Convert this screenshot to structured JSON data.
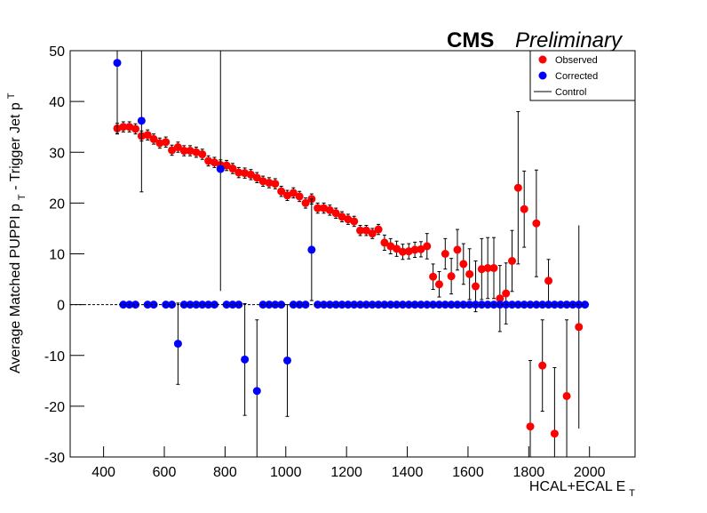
{
  "chart_data": {
    "type": "scatter",
    "title": "CMS",
    "subtitle": "Preliminary",
    "xlabel": [
      "HCAL+ECAL E",
      "T"
    ],
    "ylabel": [
      "Average Matched PUPPI p",
      "T",
      " - Trigger Jet p",
      "T"
    ],
    "x": [
      445,
      465,
      485,
      505,
      525,
      545,
      565,
      585,
      605,
      625,
      645,
      665,
      685,
      705,
      725,
      745,
      765,
      785,
      805,
      825,
      845,
      865,
      885,
      905,
      925,
      945,
      965,
      985,
      1005,
      1025,
      1045,
      1065,
      1085,
      1105,
      1125,
      1145,
      1165,
      1185,
      1205,
      1225,
      1245,
      1265,
      1285,
      1305,
      1325,
      1345,
      1365,
      1385,
      1405,
      1425,
      1445,
      1465,
      1485,
      1505,
      1525,
      1545,
      1565,
      1585,
      1605,
      1625,
      1645,
      1665,
      1685,
      1705,
      1725,
      1745,
      1765,
      1785,
      1805,
      1825,
      1845,
      1865,
      1885,
      1905,
      1925,
      1945,
      1965,
      1985
    ],
    "series": [
      {
        "name": "Observed",
        "color": "#ff0000",
        "values": [
          34.7,
          35.0,
          35.0,
          34.6,
          33.2,
          33.4,
          32.6,
          31.8,
          32.0,
          30.4,
          31.0,
          30.3,
          30.3,
          30.0,
          29.6,
          28.3,
          28.0,
          27.5,
          27.4,
          26.8,
          26.0,
          25.9,
          25.6,
          25.0,
          24.3,
          24.0,
          23.8,
          22.3,
          21.5,
          22.0,
          21.3,
          20.0,
          20.8,
          19.0,
          19.0,
          18.6,
          18.0,
          17.3,
          16.8,
          16.4,
          14.6,
          14.6,
          14.0,
          14.8,
          12.2,
          11.5,
          11.0,
          10.4,
          10.5,
          10.8,
          10.9,
          11.5,
          5.5,
          4.0,
          10.0,
          5.6,
          10.8,
          8.0,
          6.0,
          3.6,
          7.0,
          7.2,
          7.2,
          1.2,
          2.2,
          8.6,
          23.0,
          18.8,
          -24.0,
          16.0,
          -12.0,
          4.7,
          -25.4,
          null,
          -18.0,
          null,
          -4.4,
          null
        ],
        "errors": [
          1,
          1,
          1,
          1,
          1,
          1,
          1,
          1,
          1,
          1,
          1,
          1,
          1,
          1,
          1,
          1,
          1,
          1,
          1,
          1,
          1,
          1,
          1,
          1,
          1,
          1,
          1,
          1,
          1,
          1,
          1,
          1,
          1,
          1,
          1,
          1,
          1,
          1,
          1,
          1,
          1,
          1,
          1,
          1,
          1.5,
          1.5,
          1.5,
          1.5,
          1.5,
          1.5,
          1.5,
          2.5,
          2.5,
          2.5,
          3.0,
          3.5,
          4.0,
          4.0,
          5.0,
          5.0,
          6.0,
          6.0,
          6.0,
          6.5,
          6.0,
          6.0,
          15.0,
          7.5,
          13.0,
          10.5,
          9.0,
          4.2,
          13.0,
          null,
          15.0,
          null,
          20.0,
          null
        ]
      },
      {
        "name": "Corrected",
        "color": "#0000ff",
        "values": [
          47.6,
          0,
          0,
          0,
          36.2,
          0,
          0,
          null,
          0,
          0,
          -7.7,
          0,
          0,
          0,
          0,
          0,
          0,
          26.7,
          0,
          0,
          0,
          -10.8,
          null,
          -17.0,
          0,
          0,
          0,
          0,
          -11.0,
          0,
          0,
          0,
          10.8,
          0,
          0,
          0,
          0,
          0,
          0,
          0,
          0,
          0,
          0,
          0,
          0,
          0,
          0,
          0,
          0,
          0,
          0,
          0,
          0,
          0,
          0,
          0,
          0,
          0,
          0,
          0,
          0,
          0,
          0,
          0,
          0,
          0,
          0,
          0,
          0,
          0,
          0,
          0,
          0,
          0,
          0,
          0,
          0,
          0
        ],
        "errors": [
          14,
          0,
          0,
          0,
          14,
          0,
          0,
          null,
          0,
          0,
          8,
          0,
          0,
          0,
          0,
          0,
          0,
          24,
          0,
          0,
          0,
          11,
          null,
          14,
          0,
          0,
          0,
          0,
          11,
          0,
          0,
          0,
          10,
          0,
          0,
          0,
          0,
          0,
          0,
          0,
          0,
          0,
          0,
          0,
          0,
          0,
          0,
          0,
          0,
          0,
          0,
          0,
          0,
          0,
          0,
          0,
          0,
          0,
          0,
          0,
          0,
          0,
          0,
          0,
          0,
          0,
          0,
          0,
          0,
          0,
          0,
          0,
          0,
          0,
          0,
          0,
          0,
          0
        ]
      },
      {
        "name": "Control",
        "color": "#000000",
        "style": "line",
        "x": [
          290,
          1985
        ],
        "values": [
          0,
          0
        ]
      }
    ],
    "xlim": [
      290,
      2150
    ],
    "ylim": [
      -30,
      50
    ],
    "xticks": [
      400,
      600,
      800,
      1000,
      1200,
      1400,
      1600,
      1800,
      2000
    ],
    "yticks": [
      -30,
      -20,
      -10,
      0,
      10,
      20,
      30,
      40,
      50
    ],
    "legend": "top-right"
  }
}
